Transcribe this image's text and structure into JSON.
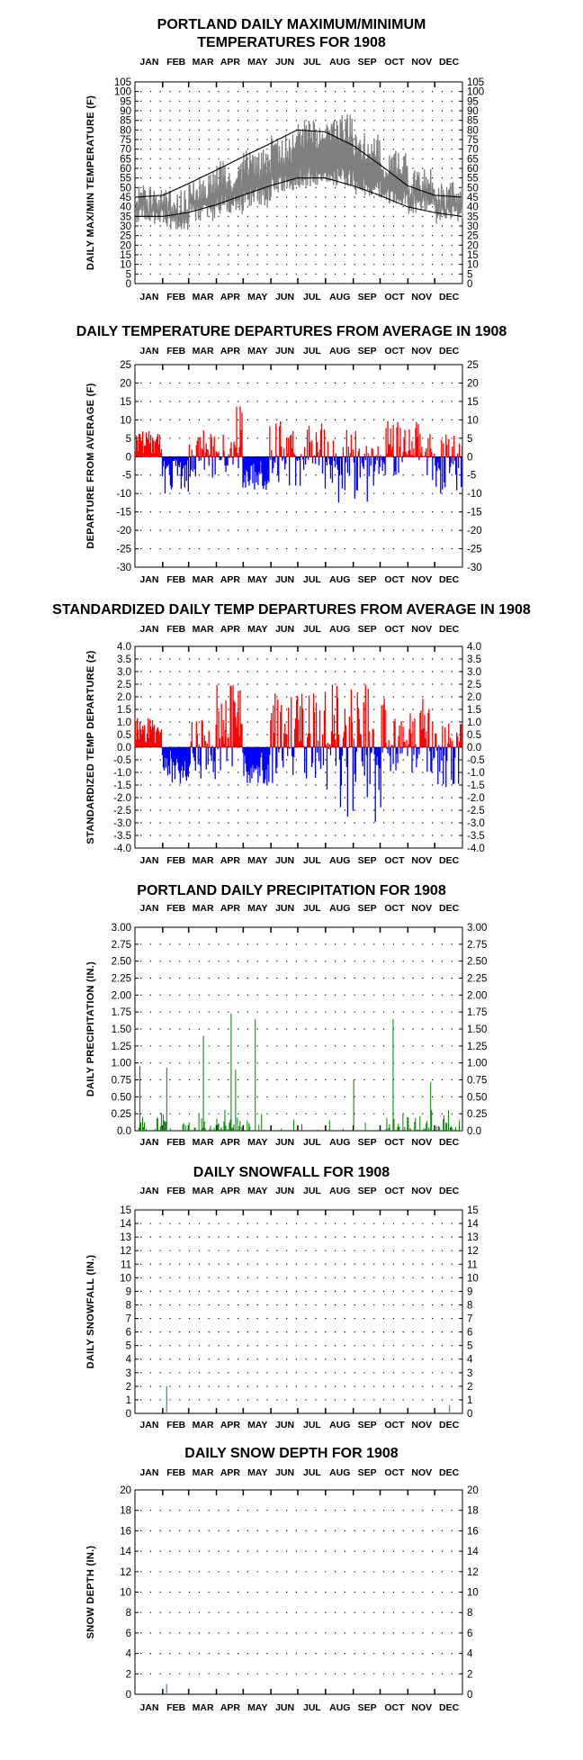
{
  "colors": {
    "max_min_trace": "#808080",
    "normal_lines": "#000000",
    "positive_departure": "#ff0000",
    "negative_departure": "#0000ff",
    "precipitation": "#008000",
    "snow": "#1e90ff",
    "grid_dots": "#000000"
  },
  "months": [
    "JAN",
    "FEB",
    "MAR",
    "APR",
    "MAY",
    "JUN",
    "JUL",
    "AUG",
    "SEP",
    "OCT",
    "NOV",
    "DEC"
  ],
  "chart_data": [
    {
      "id": "temp",
      "type": "line",
      "title": [
        "PORTLAND DAILY MAXIMUM/MINIMUM",
        "TEMPERATURES FOR 1908"
      ],
      "ylabel": "DAILY MAX/MIN TEMPERATURE (F)",
      "ylim": [
        0,
        105
      ],
      "yticks": [
        0,
        5,
        10,
        15,
        20,
        25,
        30,
        35,
        40,
        45,
        50,
        55,
        60,
        65,
        70,
        75,
        80,
        85,
        90,
        95,
        100,
        105
      ],
      "grid": true,
      "series": [
        {
          "role": "daily_max_min",
          "note_keys": "x = day of year, y = deg F",
          "max_monthly": [
            44,
            42,
            51,
            56,
            62,
            70,
            78,
            80,
            71,
            62,
            52,
            45
          ],
          "min_monthly": [
            36,
            33,
            37,
            41,
            45,
            51,
            55,
            55,
            50,
            45,
            41,
            36
          ]
        },
        {
          "role": "normal_high",
          "x": [
            1,
            32,
            60,
            91,
            121,
            152,
            182,
            213,
            244,
            274,
            305,
            335,
            366
          ],
          "y": [
            45,
            46,
            52,
            59,
            66,
            73,
            80,
            79,
            72,
            62,
            51,
            46,
            45
          ]
        },
        {
          "role": "normal_low",
          "x": [
            1,
            32,
            60,
            91,
            121,
            152,
            182,
            213,
            244,
            274,
            305,
            335,
            366
          ],
          "y": [
            35,
            35,
            37,
            41,
            46,
            51,
            55,
            55,
            51,
            46,
            40,
            37,
            35
          ]
        }
      ]
    },
    {
      "id": "dep",
      "type": "bar",
      "title": [
        "DAILY TEMPERATURE DEPARTURES FROM AVERAGE IN 1908"
      ],
      "ylabel": "DEPARTURE FROM AVERAGE (F)",
      "ylim": [
        -30,
        25
      ],
      "yticks": [
        25,
        20,
        15,
        10,
        5,
        0,
        -5,
        -10,
        -15,
        -20,
        -25,
        -30
      ],
      "grid": true,
      "values_by_period": [
        {
          "start": 1,
          "end": 30,
          "range": [
            3,
            7
          ]
        },
        {
          "start": 31,
          "end": 60,
          "range": [
            -10,
            -2
          ]
        },
        {
          "start": 61,
          "end": 90,
          "range": [
            -6,
            8
          ]
        },
        {
          "start": 91,
          "end": 120,
          "range": [
            -5,
            15
          ]
        },
        {
          "start": 121,
          "end": 150,
          "range": [
            -9,
            -3
          ]
        },
        {
          "start": 151,
          "end": 212,
          "range": [
            -8,
            10
          ]
        },
        {
          "start": 213,
          "end": 275,
          "range": [
            -14,
            8
          ]
        },
        {
          "start": 276,
          "end": 330,
          "range": [
            -5,
            10
          ]
        },
        {
          "start": 331,
          "end": 366,
          "range": [
            -11,
            7
          ]
        }
      ]
    },
    {
      "id": "zdep",
      "type": "bar",
      "title": [
        "STANDARDIZED DAILY TEMP DEPARTURES FROM AVERAGE IN 1908"
      ],
      "ylabel": "STANDARDIZED TEMP DEPARTURE  (z)",
      "ylim": [
        -4,
        4
      ],
      "yticks": [
        "4.0",
        "3.5",
        "3.0",
        "2.5",
        "2.0",
        "1.5",
        "1.0",
        "0.5",
        "0.0",
        "-0.5",
        "-1.0",
        "-1.5",
        "-2.0",
        "-2.5",
        "-3.0",
        "-3.5",
        "-4.0"
      ],
      "grid": true,
      "values_by_period": [
        {
          "start": 1,
          "end": 30,
          "range": [
            0.5,
            1.2
          ]
        },
        {
          "start": 31,
          "end": 60,
          "range": [
            -1.5,
            -0.3
          ]
        },
        {
          "start": 61,
          "end": 90,
          "range": [
            -1.3,
            1.1
          ]
        },
        {
          "start": 91,
          "end": 120,
          "range": [
            -1.0,
            2.5
          ]
        },
        {
          "start": 121,
          "end": 150,
          "range": [
            -1.5,
            -0.5
          ]
        },
        {
          "start": 151,
          "end": 212,
          "range": [
            -1.5,
            2.2
          ]
        },
        {
          "start": 213,
          "end": 275,
          "range": [
            -3.0,
            2.5
          ]
        },
        {
          "start": 276,
          "end": 330,
          "range": [
            -1.0,
            2.0
          ]
        },
        {
          "start": 331,
          "end": 366,
          "range": [
            -1.6,
            1.2
          ]
        }
      ]
    },
    {
      "id": "precip",
      "type": "bar",
      "title": [
        "PORTLAND DAILY PRECIPITATION FOR 1908"
      ],
      "ylabel": "DAILY PRECIPITATION (IN.)",
      "ylim": [
        0,
        3
      ],
      "yticks": [
        "3.00",
        "2.75",
        "2.50",
        "2.25",
        "2.00",
        "1.75",
        "1.50",
        "1.25",
        "1.00",
        "0.75",
        "0.50",
        "0.25",
        "0.0"
      ],
      "grid": true,
      "notable_values": [
        {
          "day": 6,
          "value": 0.95
        },
        {
          "day": 36,
          "value": 0.93
        },
        {
          "day": 77,
          "value": 1.4
        },
        {
          "day": 108,
          "value": 1.73
        },
        {
          "day": 113,
          "value": 0.9
        },
        {
          "day": 135,
          "value": 1.65
        },
        {
          "day": 245,
          "value": 0.75
        },
        {
          "day": 289,
          "value": 1.65
        },
        {
          "day": 331,
          "value": 0.72
        }
      ]
    },
    {
      "id": "snow",
      "type": "bar",
      "title": [
        "DAILY SNOWFALL FOR 1908"
      ],
      "ylabel": "DAILY SNOWFALL (IN.)",
      "ylim": [
        0,
        15
      ],
      "yticks": [
        "15",
        "14",
        "13",
        "12",
        "11",
        "10",
        "9",
        "8",
        "7",
        "6",
        "5",
        "4",
        "3",
        "2",
        "1",
        "0"
      ],
      "grid": true,
      "values": [
        {
          "day": 36,
          "value": 2.0
        },
        {
          "day": 352,
          "value": 0.6
        }
      ]
    },
    {
      "id": "depth",
      "type": "bar",
      "title": [
        "DAILY SNOW DEPTH FOR 1908"
      ],
      "ylabel": "SNOW DEPTH (IN.)",
      "ylim": [
        0,
        20
      ],
      "yticks": [
        "20",
        "18",
        "16",
        "14",
        "12",
        "10",
        "8",
        "6",
        "4",
        "2",
        "0"
      ],
      "grid": true,
      "values": [
        {
          "day": 36,
          "value": 1.0
        }
      ]
    }
  ]
}
